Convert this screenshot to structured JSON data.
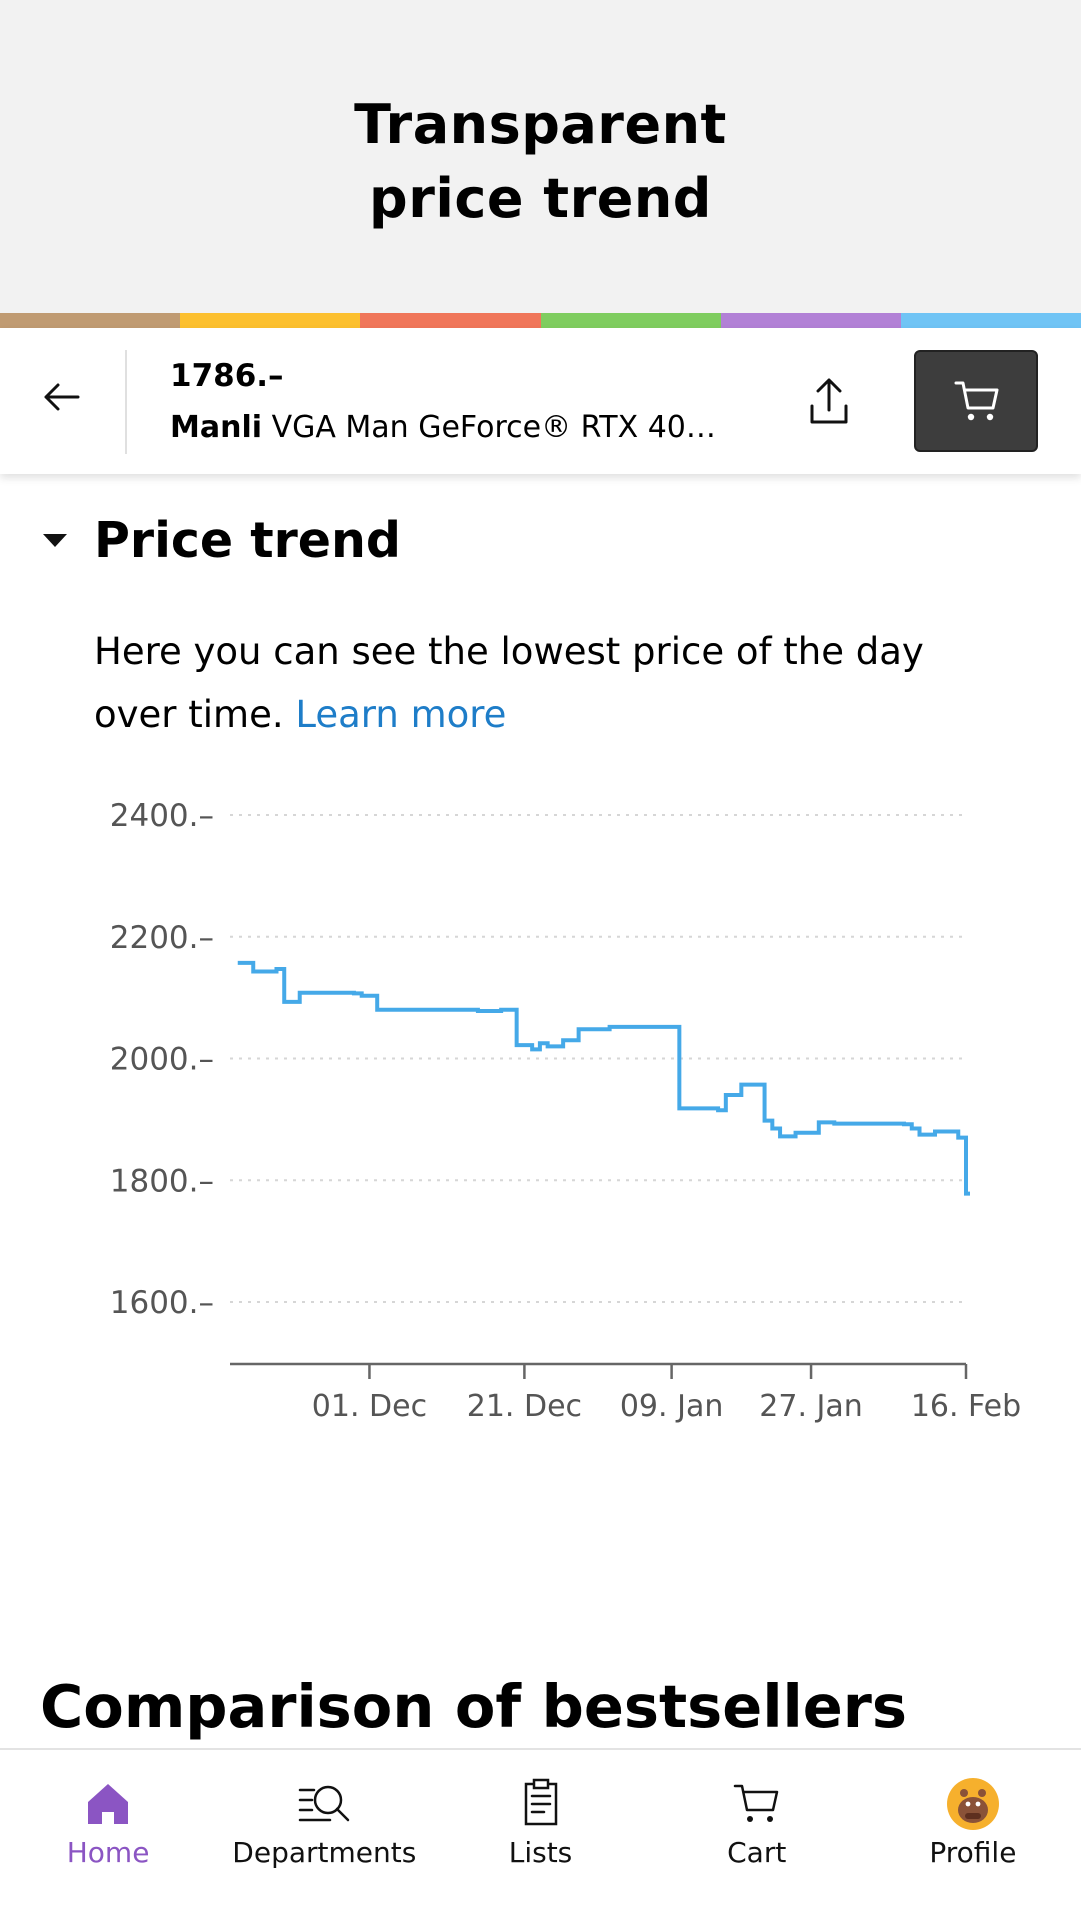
{
  "hero": {
    "title_line1": "Transparent",
    "title_line2": "price trend",
    "strip_colors": [
      "#c09b72",
      "#fcc02f",
      "#f0765a",
      "#7fcd5f",
      "#b281d6",
      "#70c4f5"
    ]
  },
  "product": {
    "price": "1786.–",
    "brand": "Manli",
    "name": "VGA Man GeForce® RTX 40…"
  },
  "price_trend": {
    "heading": "Price trend",
    "intro_text": "Here you can see the lowest price of the day over time.",
    "learn_more": "Learn more"
  },
  "chart_data": {
    "type": "line",
    "line_color": "#45a9e8",
    "step": true,
    "grid": true,
    "ylim": [
      1500,
      2400
    ],
    "y_ticks": [
      {
        "value": 2400,
        "label": "2400.–"
      },
      {
        "value": 2200,
        "label": "2200.–"
      },
      {
        "value": 2000,
        "label": "2000.–"
      },
      {
        "value": 1800,
        "label": "1800.–"
      },
      {
        "value": 1600,
        "label": "1600.–"
      }
    ],
    "x_range": [
      "2023-11-13",
      "2024-02-16"
    ],
    "x_ticks": [
      {
        "value": "2023-12-01",
        "label": "01. Dec"
      },
      {
        "value": "2023-12-21",
        "label": "21. Dec"
      },
      {
        "value": "2024-01-09",
        "label": "09. Jan"
      },
      {
        "value": "2024-01-27",
        "label": "27. Jan"
      },
      {
        "value": "2024-02-16",
        "label": "16. Feb"
      }
    ],
    "points": [
      {
        "x": "2023-11-14",
        "y": 2157
      },
      {
        "x": "2023-11-16",
        "y": 2143
      },
      {
        "x": "2023-11-19",
        "y": 2147
      },
      {
        "x": "2023-11-20",
        "y": 2093
      },
      {
        "x": "2023-11-22",
        "y": 2108
      },
      {
        "x": "2023-11-29",
        "y": 2107
      },
      {
        "x": "2023-11-30",
        "y": 2103
      },
      {
        "x": "2023-12-02",
        "y": 2080
      },
      {
        "x": "2023-12-15",
        "y": 2078
      },
      {
        "x": "2023-12-18",
        "y": 2080
      },
      {
        "x": "2023-12-20",
        "y": 2022
      },
      {
        "x": "2023-12-22",
        "y": 2015
      },
      {
        "x": "2023-12-23",
        "y": 2025
      },
      {
        "x": "2023-12-24",
        "y": 2020
      },
      {
        "x": "2023-12-26",
        "y": 2030
      },
      {
        "x": "2023-12-28",
        "y": 2048
      },
      {
        "x": "2024-01-01",
        "y": 2052
      },
      {
        "x": "2024-01-09",
        "y": 2052
      },
      {
        "x": "2024-01-10",
        "y": 1918
      },
      {
        "x": "2024-01-15",
        "y": 1915
      },
      {
        "x": "2024-01-16",
        "y": 1940
      },
      {
        "x": "2024-01-18",
        "y": 1957
      },
      {
        "x": "2024-01-21",
        "y": 1898
      },
      {
        "x": "2024-01-22",
        "y": 1885
      },
      {
        "x": "2024-01-23",
        "y": 1872
      },
      {
        "x": "2024-01-25",
        "y": 1878
      },
      {
        "x": "2024-01-28",
        "y": 1895
      },
      {
        "x": "2024-01-30",
        "y": 1893
      },
      {
        "x": "2024-02-08",
        "y": 1892
      },
      {
        "x": "2024-02-09",
        "y": 1885
      },
      {
        "x": "2024-02-10",
        "y": 1875
      },
      {
        "x": "2024-02-12",
        "y": 1880
      },
      {
        "x": "2024-02-15",
        "y": 1870
      },
      {
        "x": "2024-02-16",
        "y": 1778
      }
    ]
  },
  "comparison": {
    "heading": "Comparison of bestsellers"
  },
  "bottom_nav": {
    "active_color": "#8b55c3",
    "items": [
      {
        "label": "Home",
        "icon": "home-icon"
      },
      {
        "label": "Departments",
        "icon": "departments-search-icon"
      },
      {
        "label": "Lists",
        "icon": "clipboard-list-icon"
      },
      {
        "label": "Cart",
        "icon": "cart-icon"
      },
      {
        "label": "Profile",
        "icon": "avatar-icon"
      }
    ]
  }
}
